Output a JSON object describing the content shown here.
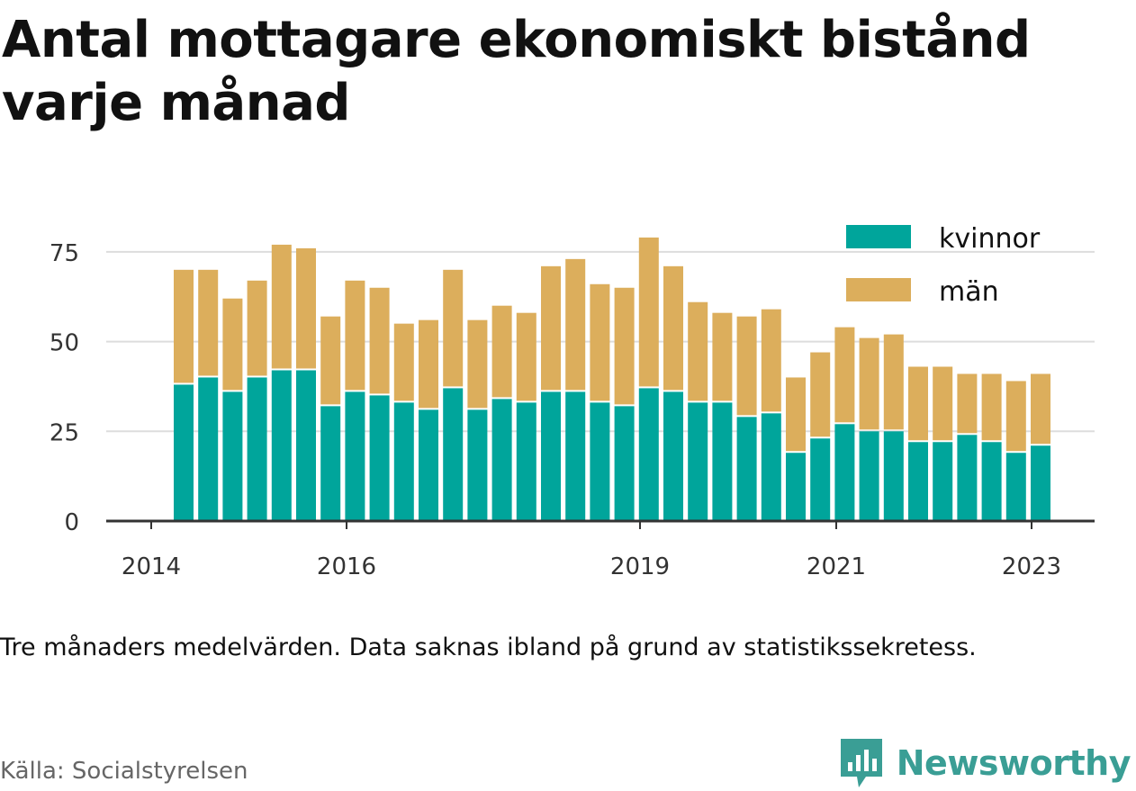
{
  "title": "Antal mottagare ekonomiskt bistånd varje månad",
  "note": "Tre månaders medelvärden. Data saknas ibland på grund av statistikssekretess.",
  "source": "Källa: Socialstyrelsen",
  "brand": {
    "name": "Newsworthy",
    "icon": "newsworthy-logo-icon",
    "color": "#3a9e95"
  },
  "colors": {
    "kvinnor": "#00a59b",
    "man": "#dcae5c",
    "grid": "#dddddd",
    "axis": "#333333"
  },
  "chart_data": {
    "type": "bar",
    "stacked": true,
    "ylim": [
      0,
      85
    ],
    "yticks": [
      0,
      25,
      50,
      75
    ],
    "xticks": [
      "2014",
      "2016",
      "2019",
      "2021",
      "2023"
    ],
    "grid": true,
    "legend_position": "top-right",
    "series": [
      {
        "name": "kvinnor",
        "values": [
          38,
          40,
          36,
          40,
          42,
          42,
          32,
          36,
          35,
          33,
          31,
          37,
          31,
          34,
          33,
          36,
          36,
          33,
          32,
          37,
          36,
          33,
          33,
          29,
          30,
          19,
          23,
          27,
          25,
          25,
          22,
          22,
          24,
          22,
          19,
          21
        ]
      },
      {
        "name": "män",
        "values": [
          32,
          30,
          26,
          27,
          35,
          34,
          25,
          31,
          30,
          22,
          25,
          33,
          25,
          26,
          25,
          35,
          37,
          33,
          33,
          42,
          35,
          28,
          25,
          28,
          29,
          21,
          24,
          27,
          26,
          27,
          21,
          21,
          17,
          19,
          20,
          20
        ]
      }
    ]
  }
}
